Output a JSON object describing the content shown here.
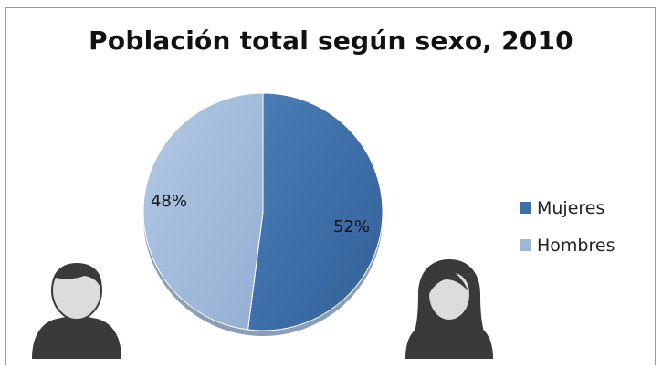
{
  "chart_data": {
    "type": "pie",
    "title": "Población total según sexo, 2010",
    "slices": [
      {
        "name": "Mujeres",
        "value": 52,
        "label": "52%",
        "color": "#3d6fa8"
      },
      {
        "name": "Hombres",
        "value": 48,
        "label": "48%",
        "color": "#9db7d9"
      }
    ],
    "legend_position": "right"
  },
  "icons": {
    "left": "man-silhouette-icon",
    "right": "woman-silhouette-icon"
  }
}
